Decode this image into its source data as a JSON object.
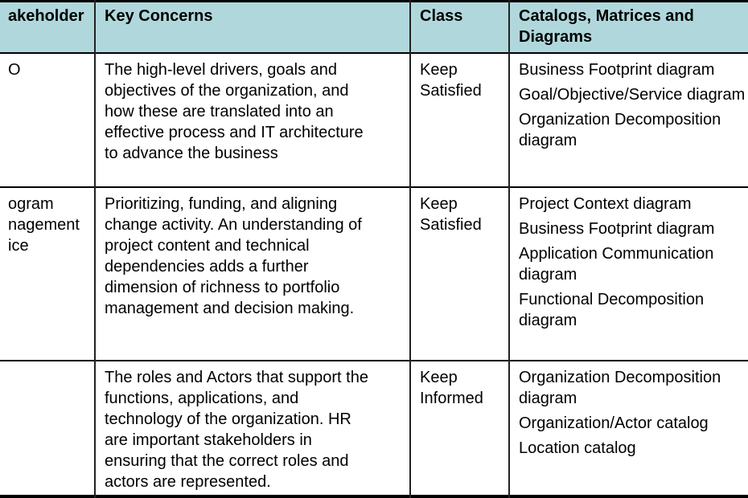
{
  "header": {
    "stakeholder": [
      "akeholder"
    ],
    "concerns": [
      "Key Concerns"
    ],
    "class": [
      "Class"
    ],
    "catalogs": [
      "Catalogs, Matrices and",
      "Diagrams"
    ]
  },
  "rows": [
    {
      "stakeholder": [
        "O"
      ],
      "concerns": [
        "The high-level drivers, goals and",
        "objectives of the organization, and",
        "how these are translated into an",
        "effective process and IT architecture",
        "to advance the business"
      ],
      "class": [
        "Keep",
        "Satisfied"
      ],
      "catalogs": [
        [
          "Business Footprint diagram"
        ],
        [
          "Goal/Objective/Service diagram"
        ],
        [
          "Organization Decomposition",
          "diagram"
        ]
      ]
    },
    {
      "stakeholder": [
        "ogram",
        "nagement",
        "ice"
      ],
      "concerns": [
        "Prioritizing, funding, and aligning",
        "change activity. An understanding of",
        "project content and technical",
        "dependencies adds a further",
        "dimension of richness to portfolio",
        "management and decision making."
      ],
      "class": [
        "Keep",
        "Satisfied"
      ],
      "catalogs": [
        [
          "Project Context diagram"
        ],
        [
          "Business Footprint diagram"
        ],
        [
          "Application Communication",
          "diagram"
        ],
        [
          "Functional Decomposition",
          "diagram"
        ]
      ]
    },
    {
      "stakeholder": [],
      "concerns": [
        "The  roles and Actors that support the",
        "functions, applications, and",
        "technology of the organization. HR",
        "are important stakeholders in",
        "ensuring that the correct roles and",
        "actors are represented."
      ],
      "class": [
        "Keep",
        "Informed"
      ],
      "catalogs": [
        [
          "Organization Decomposition",
          "diagram"
        ],
        [
          "Organization/Actor catalog"
        ],
        [
          "Location catalog"
        ]
      ]
    }
  ],
  "colors": {
    "header_bg": "#b0d8dc",
    "border": "#000000"
  }
}
